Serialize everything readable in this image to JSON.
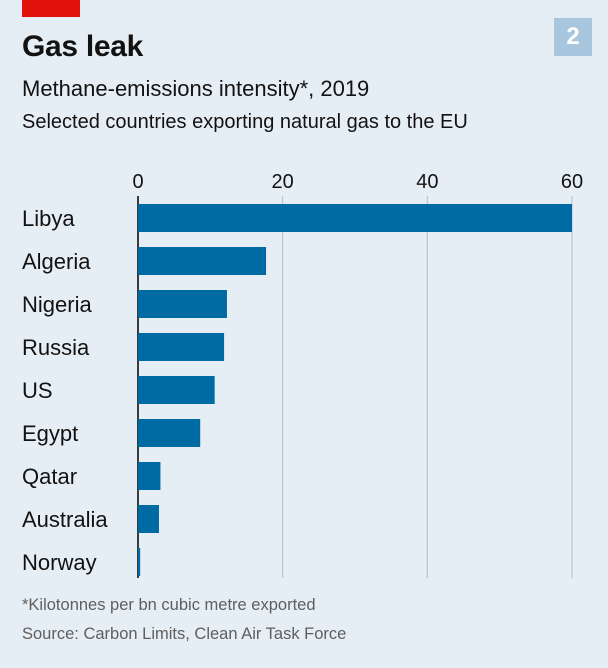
{
  "header": {
    "badge": "2",
    "title": "Gas leak",
    "subtitle": "Methane-emissions intensity*, 2019",
    "description": "Selected countries exporting natural gas to the EU"
  },
  "footer": {
    "footnote": "*Kilotonnes per bn cubic metre exported",
    "source": "Source: Carbon Limits, Clean Air Task Force"
  },
  "colors": {
    "background": "#E6EEF5",
    "bar": "#006BA2",
    "grid": "#B7C6D3",
    "accent_red": "#E3120B",
    "badge": "#A8C6DE"
  },
  "chart_data": {
    "type": "bar",
    "orientation": "horizontal",
    "categories": [
      "Libya",
      "Algeria",
      "Nigeria",
      "Russia",
      "US",
      "Egypt",
      "Qatar",
      "Australia",
      "Norway"
    ],
    "values": [
      60,
      17.7,
      12.3,
      11.9,
      10.6,
      8.6,
      3.1,
      2.9,
      0.3
    ],
    "xlim": [
      0,
      60
    ],
    "xticks": [
      0,
      20,
      40,
      60
    ],
    "axis_position": "top",
    "grid": true,
    "legend": "none"
  }
}
